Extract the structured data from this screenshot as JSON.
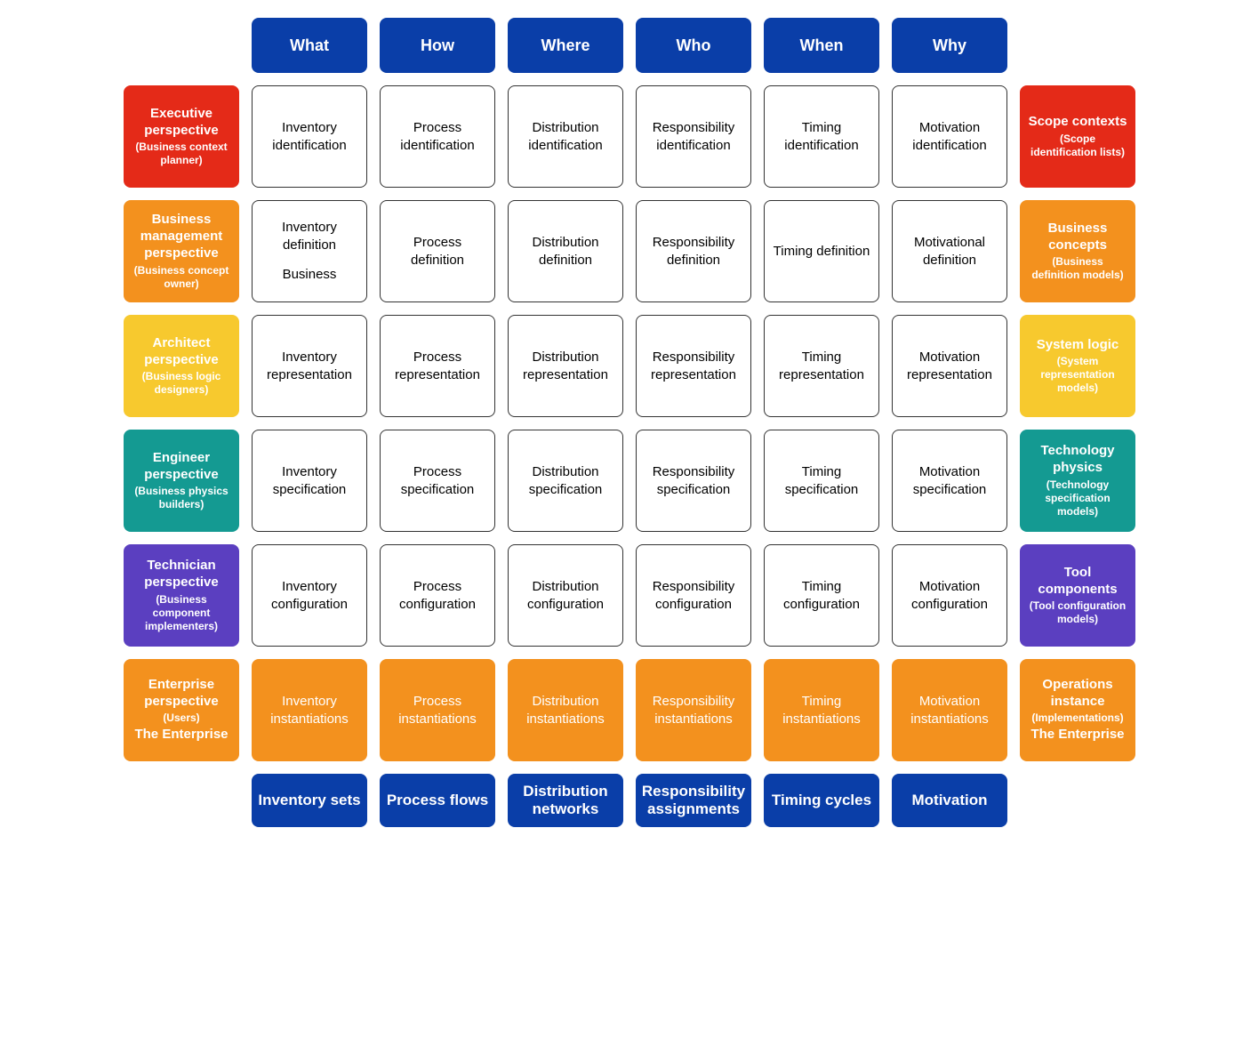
{
  "colors": {
    "blue": "#0a3ea8",
    "red": "#e42a18",
    "orange": "#f3911e",
    "yellow": "#f7c92e",
    "teal": "#149a92",
    "purple": "#5b3fc0",
    "white": "#ffffff",
    "cell_border": "#333333",
    "cell_text": "#000000"
  },
  "columns": [
    {
      "label": "What"
    },
    {
      "label": "How"
    },
    {
      "label": "Where"
    },
    {
      "label": "Who"
    },
    {
      "label": "When"
    },
    {
      "label": "Why"
    }
  ],
  "footers": [
    {
      "label": "Inventory sets"
    },
    {
      "label": "Process flows"
    },
    {
      "label": "Distribution networks"
    },
    {
      "label": "Responsibility assignments"
    },
    {
      "label": "Timing cycles"
    },
    {
      "label": "Motivation"
    }
  ],
  "rows": [
    {
      "left": {
        "title": "Executive perspective",
        "subtitle": "(Business context planner)",
        "extra": ""
      },
      "right": {
        "title": "Scope contexts",
        "subtitle": "(Scope identification lists)",
        "extra": ""
      },
      "color_key": "red",
      "cells": [
        {
          "line1": "Inventory",
          "line2": "identification",
          "line3": ""
        },
        {
          "line1": "Process",
          "line2": "identification",
          "line3": ""
        },
        {
          "line1": "Distribution",
          "line2": "identification",
          "line3": ""
        },
        {
          "line1": "Responsibility",
          "line2": "identification",
          "line3": ""
        },
        {
          "line1": "Timing",
          "line2": "identification",
          "line3": ""
        },
        {
          "line1": "Motivation",
          "line2": "identification",
          "line3": ""
        }
      ]
    },
    {
      "left": {
        "title": "Business management perspective",
        "subtitle": "(Business concept owner)",
        "extra": ""
      },
      "right": {
        "title": "Business concepts",
        "subtitle": "(Business definition models)",
        "extra": ""
      },
      "color_key": "orange",
      "cells": [
        {
          "line1": "Inventory",
          "line2": "definition",
          "line3": "Business"
        },
        {
          "line1": "Process",
          "line2": "definition",
          "line3": ""
        },
        {
          "line1": "Distribution",
          "line2": "definition",
          "line3": ""
        },
        {
          "line1": "Responsibility",
          "line2": "definition",
          "line3": ""
        },
        {
          "line1": "Timing definition",
          "line2": "",
          "line3": ""
        },
        {
          "line1": "Motivational",
          "line2": "definition",
          "line3": ""
        }
      ]
    },
    {
      "left": {
        "title": "Architect perspective",
        "subtitle": "(Business logic designers)",
        "extra": ""
      },
      "right": {
        "title": "System logic",
        "subtitle": "(System representation models)",
        "extra": ""
      },
      "color_key": "yellow",
      "cells": [
        {
          "line1": "Inventory",
          "line2": "representation",
          "line3": ""
        },
        {
          "line1": "Process",
          "line2": "representation",
          "line3": ""
        },
        {
          "line1": "Distribution",
          "line2": "representation",
          "line3": ""
        },
        {
          "line1": "Responsibility",
          "line2": "representation",
          "line3": ""
        },
        {
          "line1": "Timing",
          "line2": "representation",
          "line3": ""
        },
        {
          "line1": "Motivation",
          "line2": "representation",
          "line3": ""
        }
      ]
    },
    {
      "left": {
        "title": "Engineer perspective",
        "subtitle": "(Business physics builders)",
        "extra": ""
      },
      "right": {
        "title": "Technology physics",
        "subtitle": "(Technology specification models)",
        "extra": ""
      },
      "color_key": "teal",
      "cells": [
        {
          "line1": "Inventory",
          "line2": "specification",
          "line3": ""
        },
        {
          "line1": "Process",
          "line2": "specification",
          "line3": ""
        },
        {
          "line1": "Distribution",
          "line2": "specification",
          "line3": ""
        },
        {
          "line1": "Responsibility",
          "line2": "specification",
          "line3": ""
        },
        {
          "line1": "Timing",
          "line2": "specification",
          "line3": ""
        },
        {
          "line1": "Motivation",
          "line2": "specification",
          "line3": ""
        }
      ]
    },
    {
      "left": {
        "title": "Technician perspective",
        "subtitle": "(Business component implementers)",
        "extra": ""
      },
      "right": {
        "title": "Tool components",
        "subtitle": "(Tool configuration models)",
        "extra": ""
      },
      "color_key": "purple",
      "cells": [
        {
          "line1": "Inventory",
          "line2": "configuration",
          "line3": ""
        },
        {
          "line1": "Process",
          "line2": "configuration",
          "line3": ""
        },
        {
          "line1": "Distribution",
          "line2": "configuration",
          "line3": ""
        },
        {
          "line1": "Responsibility",
          "line2": "configuration",
          "line3": ""
        },
        {
          "line1": "Timing",
          "line2": "configuration",
          "line3": ""
        },
        {
          "line1": "Motivation",
          "line2": "configuration",
          "line3": ""
        }
      ]
    },
    {
      "left": {
        "title": "Enterprise perspective",
        "subtitle": "(Users)",
        "extra": "The Enterprise"
      },
      "right": {
        "title": "Operations instance",
        "subtitle": "(Implementations)",
        "extra": "The Enterprise"
      },
      "color_key": "orange",
      "instantiation": true,
      "cells": [
        {
          "line1": "Inventory",
          "line2": "instantiations",
          "line3": ""
        },
        {
          "line1": "Process",
          "line2": "instantiations",
          "line3": ""
        },
        {
          "line1": "Distribution",
          "line2": "instantiations",
          "line3": ""
        },
        {
          "line1": "Responsibility",
          "line2": "instantiations",
          "line3": ""
        },
        {
          "line1": "Timing",
          "line2": "instantiations",
          "line3": ""
        },
        {
          "line1": "Motivation",
          "line2": "instantiations",
          "line3": ""
        }
      ]
    }
  ]
}
